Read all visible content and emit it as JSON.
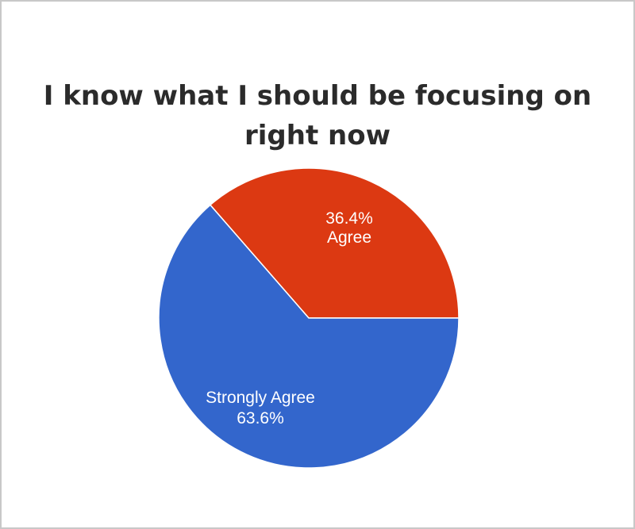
{
  "chart_data": {
    "type": "pie",
    "title_lines": [
      "I know what I should be focusing on",
      "right now"
    ],
    "slices": [
      {
        "label": "Agree",
        "value": 36.4,
        "display_pct": "36.4%",
        "color": "#dc3912"
      },
      {
        "label": "Strongly Agree",
        "value": 63.6,
        "display_pct": "63.6%",
        "color": "#3366cc"
      }
    ]
  }
}
